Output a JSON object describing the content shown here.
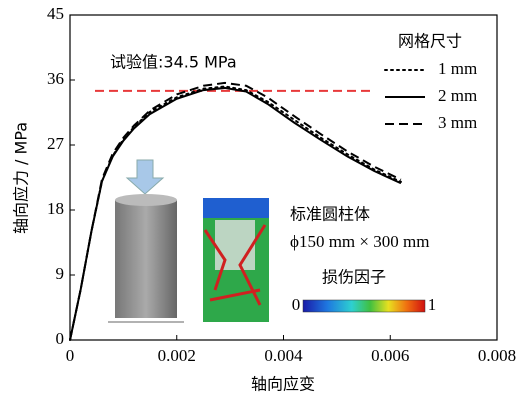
{
  "chart_data": {
    "type": "line",
    "x_label": "轴向应变",
    "y_label": "轴向应力 / MPa",
    "xlim": [
      0,
      0.008
    ],
    "xticks": [
      0,
      0.002,
      0.004,
      0.006,
      0.008
    ],
    "ylim": [
      0,
      45
    ],
    "yticks": [
      0,
      9,
      18,
      27,
      36,
      45
    ],
    "x": [
      0,
      0.0002,
      0.0004,
      0.0006,
      0.0008,
      0.001,
      0.0012,
      0.0015,
      0.002,
      0.0025,
      0.0029,
      0.0033,
      0.0037,
      0.0042,
      0.0047,
      0.0052,
      0.0057,
      0.0062
    ],
    "legend_title": "网格尺寸",
    "series": [
      {
        "name": "1 mm",
        "color": "#000000",
        "dash": "dotted",
        "values": [
          0,
          7,
          15,
          22,
          25.5,
          27.8,
          29.5,
          31.6,
          33.6,
          34.8,
          35.1,
          34.6,
          33,
          30.5,
          28,
          25.7,
          23.6,
          21.9
        ]
      },
      {
        "name": "2 mm",
        "color": "#000000",
        "dash": "solid",
        "values": [
          0,
          7,
          15,
          22,
          25.4,
          27.6,
          29.3,
          31.3,
          33.4,
          34.6,
          34.9,
          34.4,
          32.7,
          30.1,
          27.7,
          25.4,
          23.4,
          21.7
        ]
      },
      {
        "name": "3 mm",
        "color": "#000000",
        "dash": "dashed",
        "values": [
          0,
          7,
          15,
          22.3,
          25.8,
          28,
          29.7,
          31.8,
          34,
          35.2,
          35.6,
          35.2,
          33.6,
          31,
          28.5,
          26.1,
          24,
          22.2
        ]
      }
    ],
    "reference_line": {
      "value": 34.5,
      "label": "试验值:34.5 MPa",
      "color": "#e8393a"
    },
    "specimen": [
      "标准圆柱体",
      "ϕ150 mm × 300 mm"
    ],
    "colorbar": {
      "title": "损伤因子",
      "ticks": [
        0,
        1
      ]
    }
  }
}
